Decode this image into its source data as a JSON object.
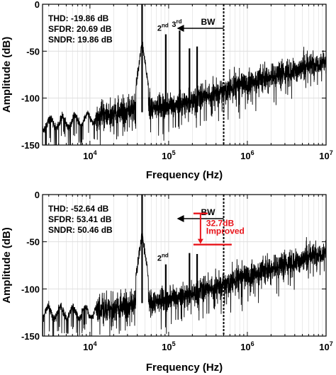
{
  "chart_data": [
    {
      "type": "line",
      "panel": "top",
      "xlabel": "Frequency (Hz)",
      "ylabel": "Amplitude (dB)",
      "xscale": "log",
      "xlim": [
        2500,
        10000000
      ],
      "ylim": [
        -150,
        0
      ],
      "x_ticks": [
        {
          "value": 10000,
          "base": "10",
          "exp": "4"
        },
        {
          "value": 100000,
          "base": "10",
          "exp": "5"
        },
        {
          "value": 1000000,
          "base": "10",
          "exp": "6"
        },
        {
          "value": 10000000,
          "base": "10",
          "exp": "7"
        }
      ],
      "y_ticks": [
        "0",
        "-50",
        "-100",
        "-150"
      ],
      "grid": true,
      "color": "#000000",
      "metrics": [
        "THD: -19.86 dB",
        "SFDR: 20.69 dB",
        "SNDR: 19.86 dB"
      ],
      "bw_label": "BW",
      "bw_freq": 500000,
      "noise_floor_db": [
        [
          2500,
          -128
        ],
        [
          10000,
          -122
        ],
        [
          46000,
          -110
        ],
        [
          100000,
          -110
        ],
        [
          500000,
          -92
        ],
        [
          10000000,
          -60
        ]
      ],
      "tones": [
        {
          "freq": 46000,
          "db": 0
        },
        {
          "freq": 92000,
          "db": -32,
          "base": "2",
          "sup": "nd"
        },
        {
          "freq": 138000,
          "db": -28,
          "base": "3",
          "sup": "rd"
        },
        {
          "freq": 184000,
          "db": -47
        },
        {
          "freq": 230000,
          "db": -45
        }
      ]
    },
    {
      "type": "line",
      "panel": "bottom",
      "xlabel": "Frequency (Hz)",
      "ylabel": "Amplitude (dB)",
      "xscale": "log",
      "xlim": [
        2500,
        10000000
      ],
      "ylim": [
        -150,
        0
      ],
      "x_ticks": [
        {
          "value": 10000,
          "base": "10",
          "exp": "4"
        },
        {
          "value": 100000,
          "base": "10",
          "exp": "5"
        },
        {
          "value": 1000000,
          "base": "10",
          "exp": "6"
        },
        {
          "value": 10000000,
          "base": "10",
          "exp": "7"
        }
      ],
      "y_ticks": [
        "0",
        "-50",
        "-100",
        "-150"
      ],
      "grid": true,
      "color": "#000000",
      "metrics": [
        "THD: -52.64 dB",
        "SFDR: 53.41 dB",
        "SNDR: 50.46 dB"
      ],
      "bw_label": "BW",
      "bw_freq": 500000,
      "improvement_label": [
        "32.7dB",
        "Improved"
      ],
      "improvement_range_db": [
        -20,
        -53
      ],
      "improvement_freq": 190000,
      "improvement_color": "#e8141b",
      "noise_floor_db": [
        [
          2500,
          -125
        ],
        [
          10000,
          -125
        ],
        [
          46000,
          -115
        ],
        [
          100000,
          -112
        ],
        [
          500000,
          -95
        ],
        [
          10000000,
          -60
        ]
      ],
      "tones": [
        {
          "freq": 46000,
          "db": 0
        },
        {
          "freq": 92000,
          "db": -74,
          "base": "2",
          "sup": "nd"
        },
        {
          "freq": 184000,
          "db": -62
        },
        {
          "freq": 230000,
          "db": -63
        }
      ]
    }
  ]
}
